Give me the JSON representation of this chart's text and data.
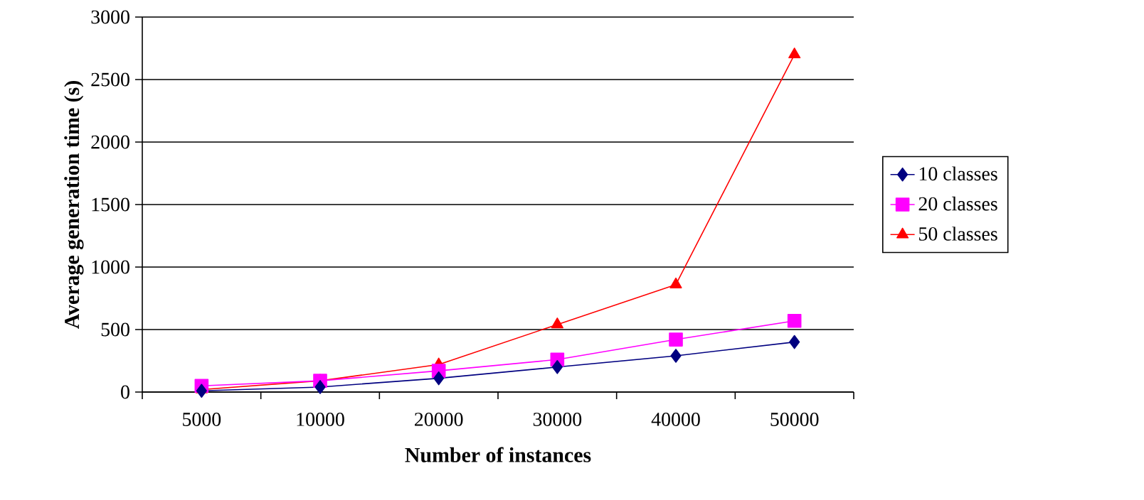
{
  "chart_data": {
    "type": "line",
    "xlabel": "Number of  instances",
    "ylabel": "Average generation time (s)",
    "categories": [
      "5000",
      "10000",
      "20000",
      "30000",
      "40000",
      "50000"
    ],
    "ylim": [
      0,
      3000
    ],
    "yticks": [
      0,
      500,
      1000,
      1500,
      2000,
      2500,
      3000
    ],
    "grid": "y",
    "legend": "right",
    "series": [
      {
        "name": "10 classes",
        "color": "#000080",
        "marker": "diamond",
        "values": [
          10,
          40,
          110,
          200,
          290,
          400
        ]
      },
      {
        "name": "20 classes",
        "color": "#ff00ff",
        "marker": "square",
        "values": [
          50,
          90,
          170,
          260,
          420,
          570
        ]
      },
      {
        "name": "50 classes",
        "color": "#ff0000",
        "marker": "triangle",
        "values": [
          20,
          90,
          220,
          540,
          860,
          2700
        ]
      }
    ]
  }
}
